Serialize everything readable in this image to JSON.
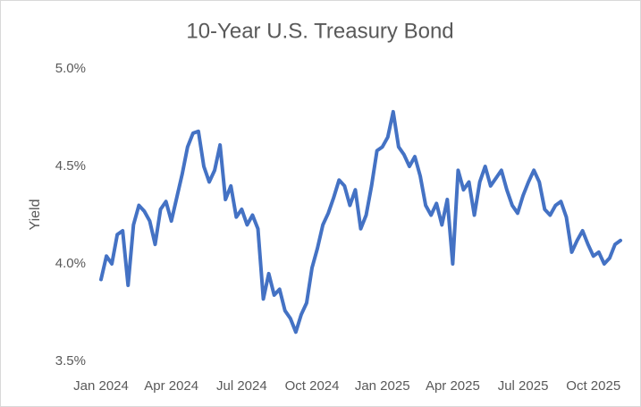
{
  "chart_data": {
    "type": "line",
    "title": "10-Year U.S. Treasury Bond",
    "y_label": "Yield",
    "categories": [
      "Jan 2024",
      null,
      null,
      null,
      null,
      null,
      null,
      null,
      null,
      null,
      null,
      null,
      null,
      "Apr 2024",
      null,
      null,
      null,
      null,
      null,
      null,
      null,
      null,
      null,
      null,
      null,
      null,
      "Jul 2024",
      null,
      null,
      null,
      null,
      null,
      null,
      null,
      null,
      null,
      null,
      null,
      null,
      "Oct 2024",
      null,
      null,
      null,
      null,
      null,
      null,
      null,
      null,
      null,
      null,
      null,
      null,
      "Jan 2025",
      null,
      null,
      null,
      null,
      null,
      null,
      null,
      null,
      null,
      null,
      null,
      null,
      "Apr 2025",
      null,
      null,
      null,
      null,
      null,
      null,
      null,
      null,
      null,
      null,
      null,
      null,
      "Jul 2025",
      null,
      null,
      null,
      null,
      null,
      null,
      null,
      null,
      null,
      null,
      null,
      null,
      "Oct 2025",
      null,
      null,
      null,
      null,
      null
    ],
    "series": [
      {
        "name": "Yield",
        "color": "#4472c4",
        "values": [
          3.92,
          4.04,
          4.0,
          4.15,
          4.17,
          3.89,
          4.2,
          4.3,
          4.27,
          4.22,
          4.1,
          4.28,
          4.32,
          4.22,
          4.34,
          4.46,
          4.6,
          4.67,
          4.68,
          4.5,
          4.42,
          4.48,
          4.61,
          4.33,
          4.4,
          4.24,
          4.28,
          4.2,
          4.25,
          4.18,
          3.82,
          3.95,
          3.84,
          3.87,
          3.76,
          3.72,
          3.65,
          3.74,
          3.8,
          3.98,
          4.08,
          4.2,
          4.26,
          4.34,
          4.43,
          4.4,
          4.3,
          4.38,
          4.18,
          4.25,
          4.4,
          4.58,
          4.6,
          4.65,
          4.78,
          4.6,
          4.56,
          4.5,
          4.55,
          4.45,
          4.3,
          4.25,
          4.31,
          4.2,
          4.33,
          4.0,
          4.48,
          4.38,
          4.42,
          4.25,
          4.42,
          4.5,
          4.4,
          4.44,
          4.48,
          4.38,
          4.3,
          4.26,
          4.35,
          4.42,
          4.48,
          4.42,
          4.28,
          4.25,
          4.3,
          4.32,
          4.24,
          4.06,
          4.12,
          4.17,
          4.1,
          4.04,
          4.06,
          4.0,
          4.03,
          4.1,
          4.12
        ]
      }
    ],
    "ylim": [
      3.5,
      5.0
    ],
    "yticks": [
      {
        "value": 3.5,
        "label": "3.5%"
      },
      {
        "value": 4.0,
        "label": "4.0%"
      },
      {
        "value": 4.5,
        "label": "4.5%"
      },
      {
        "value": 5.0,
        "label": "5.0%"
      }
    ],
    "grid": false
  }
}
